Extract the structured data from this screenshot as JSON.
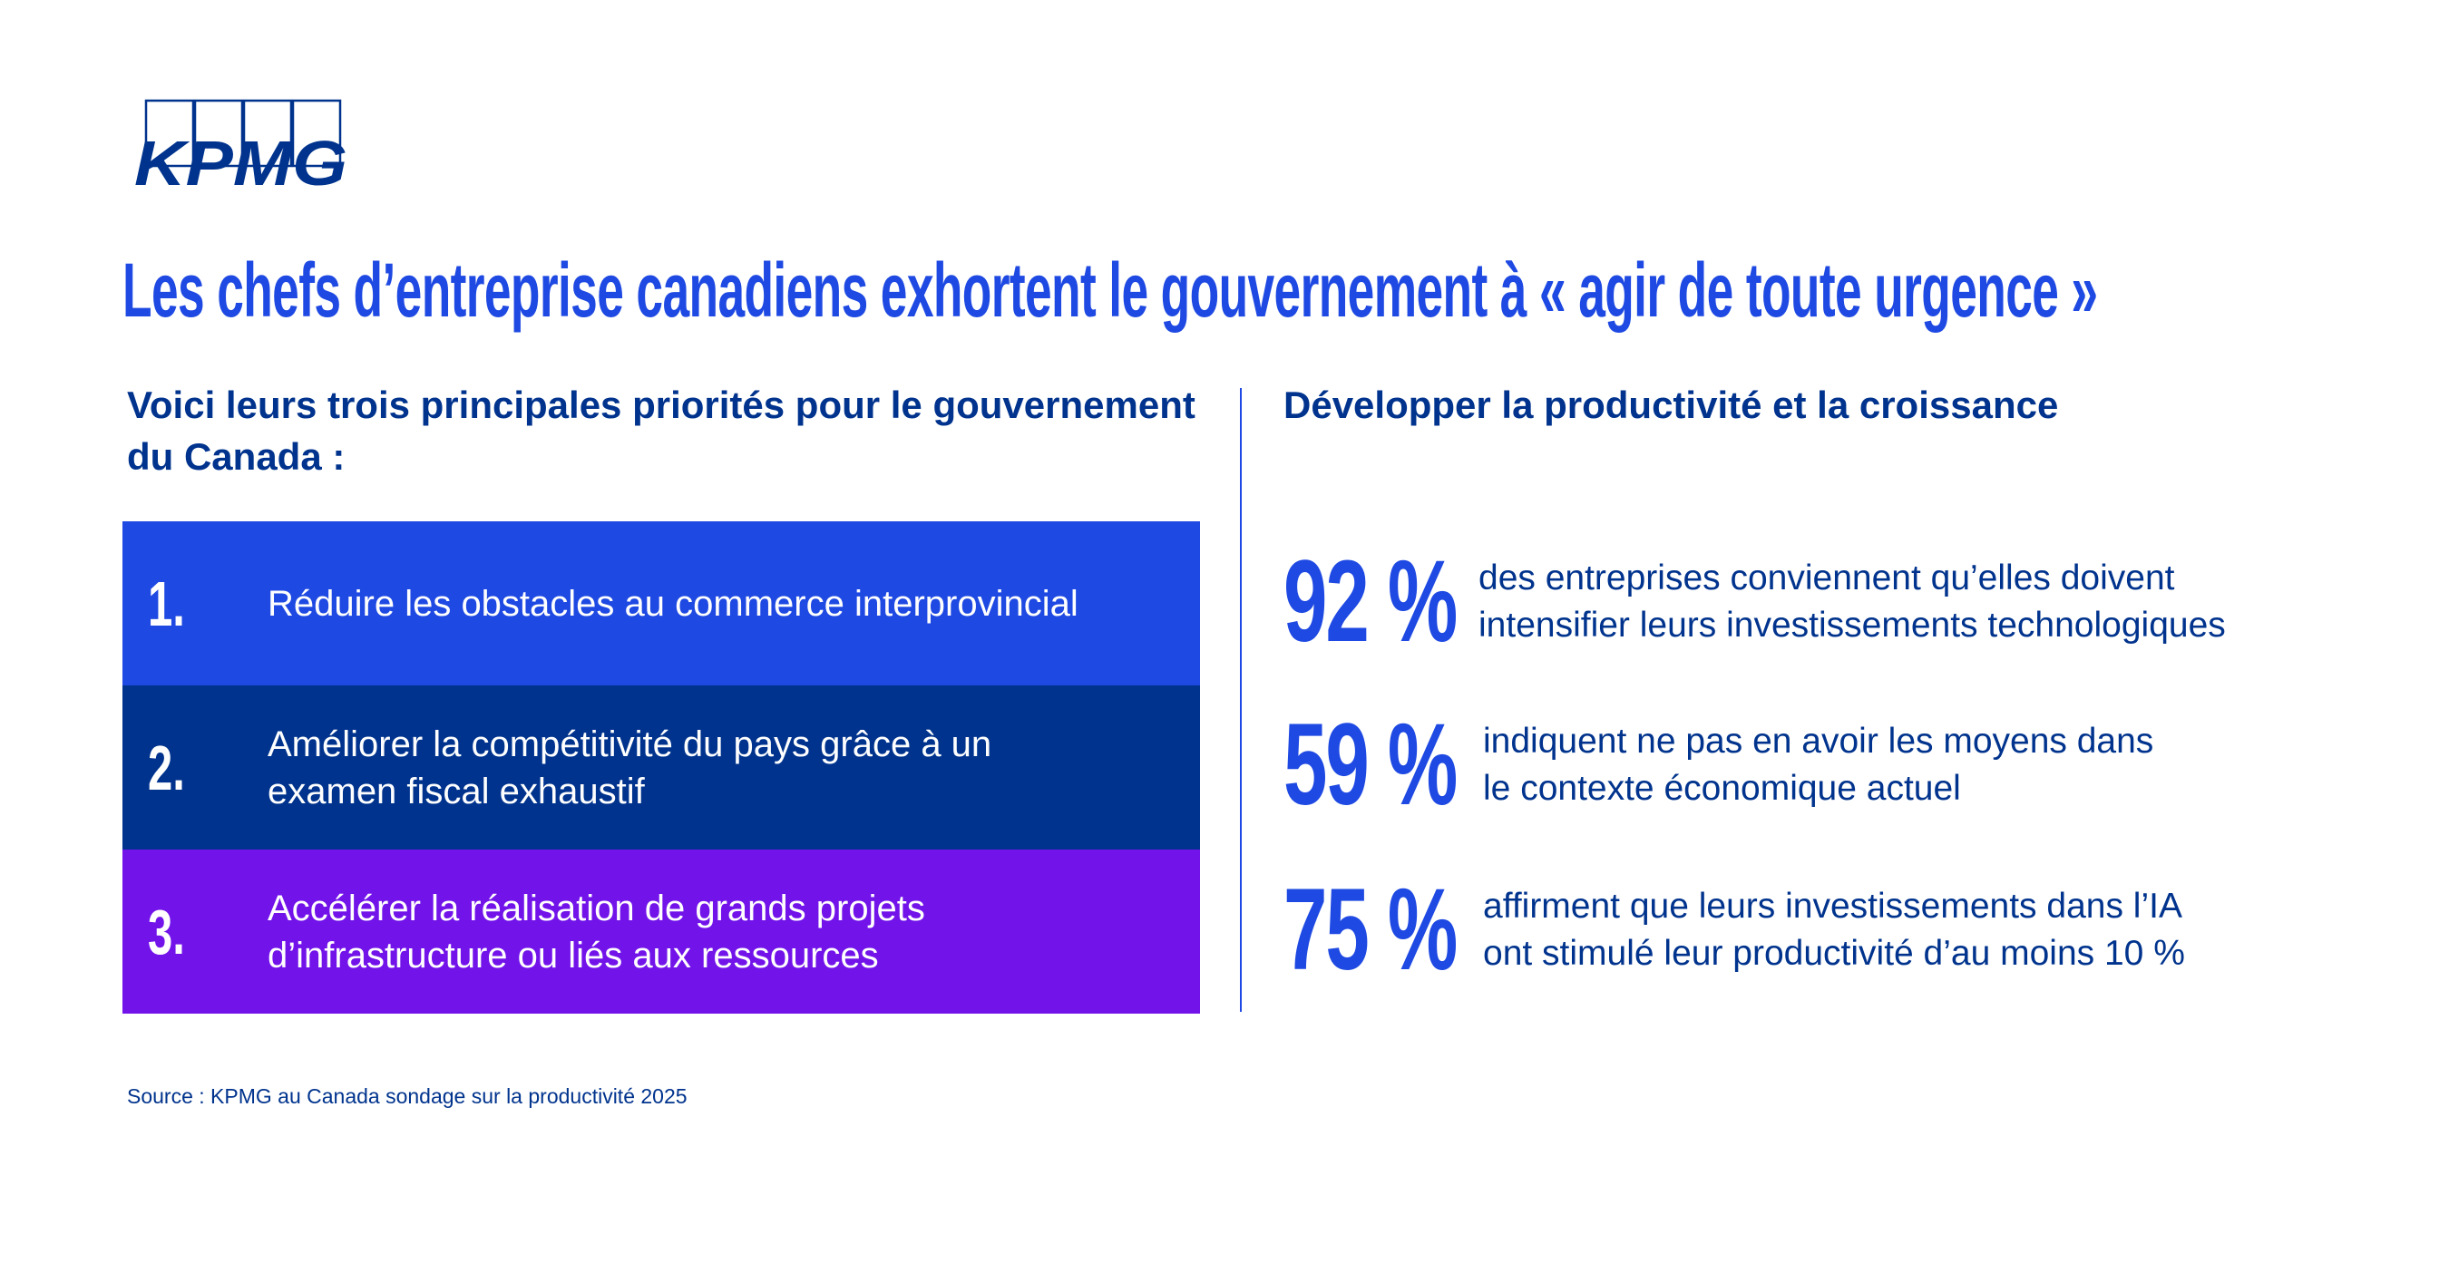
{
  "brand": {
    "logo_text": "KPMG",
    "colors": {
      "blue": "#1E49E2",
      "dark_blue": "#00338D",
      "purple": "#7213EA"
    }
  },
  "title": "Les chefs d’entreprise canadiens exhortent le gouvernement à « agir de toute urgence »",
  "left": {
    "heading": "Voici leurs trois principales priorités pour le gouvernement du Canada :",
    "priorities": [
      {
        "number": "1.",
        "text": "Réduire les obstacles au commerce interprovincial",
        "color": "#1E49E2"
      },
      {
        "number": "2.",
        "text": "Améliorer la compétitivité du pays grâce à un examen fiscal exhaustif",
        "color": "#00338D"
      },
      {
        "number": "3.",
        "text": "Accélérer la réalisation de grands projets d’infrastructure ou liés aux ressources",
        "color": "#7213EA"
      }
    ]
  },
  "right": {
    "heading": "Développer la productivité et la croissance",
    "stats": [
      {
        "value": "92 %",
        "text": "des entreprises conviennent qu’elles doivent\nintensifier leurs investissements technologiques"
      },
      {
        "value": "59 %",
        "text": "indiquent ne pas en avoir les moyens dans\nle contexte économique actuel"
      },
      {
        "value": "75 %",
        "text": "affirment que leurs investissements dans l’IA\nont stimulé leur productivité d’au moins 10 %"
      }
    ]
  },
  "source": "Source : KPMG au Canada sondage sur la productivité 2025"
}
